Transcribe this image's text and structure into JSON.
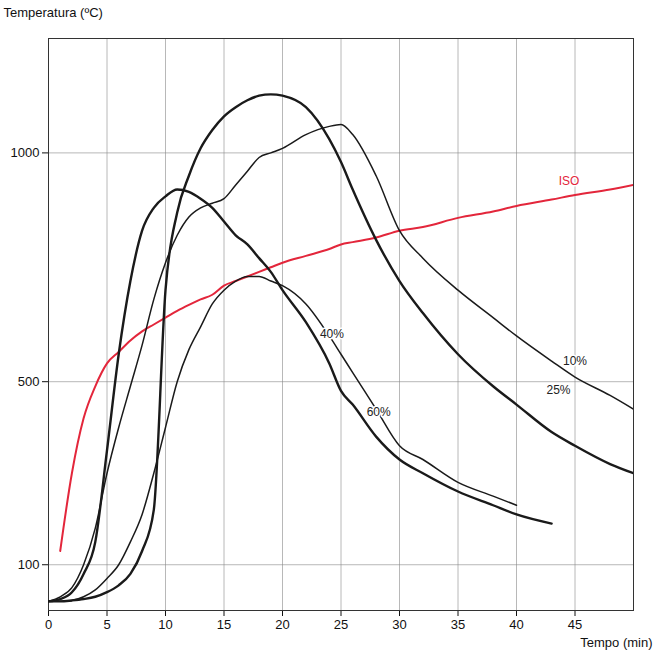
{
  "chart_data": {
    "type": "line",
    "y_label": "Temperatura (ºC)",
    "x_label": "Tempo (min)",
    "x": [
      0,
      1,
      2,
      3,
      4,
      5,
      6,
      7,
      8,
      9,
      10,
      11,
      12,
      13,
      14,
      15,
      16,
      17,
      18,
      19,
      20,
      22,
      24,
      25,
      26,
      28,
      30,
      32,
      35,
      38,
      40,
      43,
      45,
      48,
      50
    ],
    "series": [
      {
        "name": "ISO",
        "color": "#e3263b",
        "values": [
          null,
          130,
          300,
          420,
          490,
          540,
          565,
          590,
          610,
          625,
          640,
          655,
          668,
          680,
          690,
          710,
          720,
          730,
          740,
          750,
          760,
          775,
          790,
          800,
          805,
          815,
          830,
          838,
          858,
          872,
          884,
          898,
          908,
          920,
          930
        ]
      },
      {
        "name": "40%",
        "color": "#1a1a1a",
        "values": [
          20,
          20,
          22,
          30,
          45,
          70,
          100,
          150,
          210,
          300,
          400,
          500,
          570,
          620,
          670,
          700,
          720,
          730,
          730,
          720,
          710,
          670,
          600,
          560,
          520,
          440,
          360,
          330,
          280,
          250,
          230,
          null,
          null,
          null,
          null
        ]
      },
      {
        "name": "60%",
        "color": "#1a1a1a",
        "values": [
          20,
          25,
          40,
          80,
          150,
          350,
          560,
          720,
          830,
          880,
          905,
          920,
          915,
          900,
          880,
          850,
          820,
          800,
          770,
          740,
          700,
          630,
          540,
          480,
          450,
          380,
          330,
          300,
          260,
          230,
          210,
          190,
          null,
          null,
          null
        ]
      },
      {
        "name": "25%",
        "color": "#1a1a1a",
        "values": [
          20,
          20,
          22,
          25,
          30,
          40,
          55,
          80,
          130,
          220,
          700,
          870,
          950,
          1010,
          1050,
          1080,
          1100,
          1115,
          1125,
          1128,
          1125,
          1100,
          1030,
          980,
          920,
          810,
          720,
          650,
          560,
          490,
          450,
          390,
          360,
          320,
          300
        ]
      },
      {
        "name": "10%",
        "color": "#1a1a1a",
        "values": [
          20,
          30,
          50,
          100,
          180,
          300,
          400,
          490,
          580,
          680,
          760,
          820,
          860,
          880,
          890,
          900,
          930,
          960,
          990,
          1000,
          1010,
          1040,
          1058,
          1062,
          1040,
          950,
          830,
          770,
          700,
          640,
          600,
          545,
          510,
          470,
          440
        ]
      }
    ],
    "xlim": [
      0,
      50
    ],
    "xticks": [
      0,
      5,
      10,
      15,
      20,
      25,
      30,
      35,
      40,
      45
    ],
    "ylim": [
      0,
      1250
    ],
    "yticks": [
      100,
      500,
      1000
    ],
    "grid": true
  }
}
